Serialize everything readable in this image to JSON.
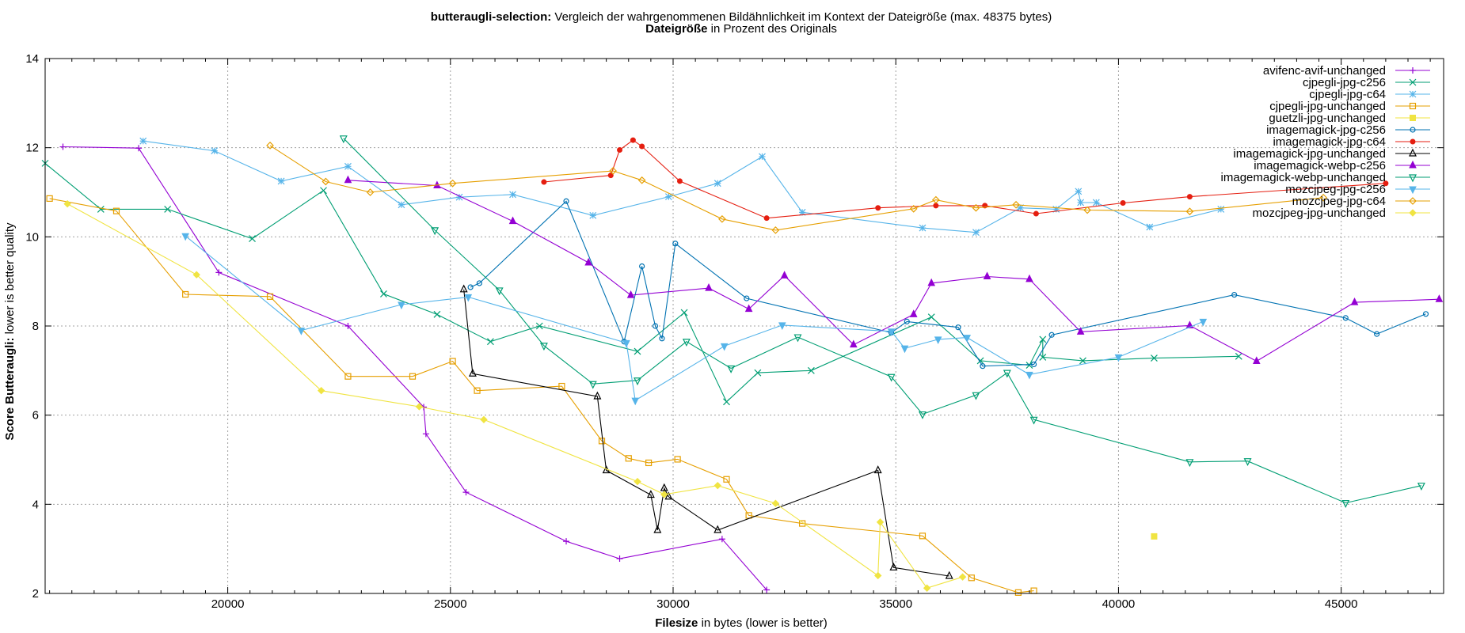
{
  "chart_data": {
    "type": "line",
    "title_bold": "butteraugli-selection:",
    "title_rest": " Vergleich der wahrgenommenen Bildähnlichkeit im Kontext der Dateigröße (max. 48375 bytes)",
    "subtitle_bold": "Dateigröße",
    "subtitle_rest": " in Prozent des Originals",
    "xlabel_bold": "Filesize",
    "xlabel_rest": " in bytes (lower is better)",
    "ylabel_bold": "Score Butteraugli:",
    "ylabel_rest": " lower is better quality",
    "x_range": [
      15900,
      47300
    ],
    "y_range": [
      2,
      14
    ],
    "x_ticks": [
      20000,
      25000,
      30000,
      35000,
      40000,
      45000
    ],
    "x_tick_labels": [
      "20000",
      "25000",
      "30000",
      "35000",
      "40000",
      "45000"
    ],
    "y_ticks": [
      2,
      4,
      6,
      8,
      10,
      12,
      14
    ],
    "y_tick_labels": [
      "2",
      "4",
      "6",
      "8",
      "10",
      "12",
      "14"
    ],
    "grid": true,
    "legend_position": "top-right",
    "series": [
      {
        "name": "avifenc-avif-unchanged",
        "color": "#9400d3",
        "marker": "plus",
        "points": [
          [
            16300,
            12.02
          ],
          [
            18000,
            11.99
          ],
          [
            19800,
            9.2
          ],
          [
            22700,
            8.0
          ],
          [
            24400,
            6.18
          ],
          [
            24450,
            5.58
          ],
          [
            25350,
            4.27
          ],
          [
            27600,
            3.17
          ],
          [
            28800,
            2.78
          ],
          [
            31100,
            3.22
          ],
          [
            32100,
            2.08
          ]
        ]
      },
      {
        "name": "cjpegli-jpg-c256",
        "color": "#009e73",
        "marker": "x",
        "points": [
          [
            15900,
            11.65
          ],
          [
            17150,
            10.62
          ],
          [
            18650,
            10.62
          ],
          [
            20550,
            9.96
          ],
          [
            22150,
            11.04
          ],
          [
            23500,
            8.72
          ],
          [
            24700,
            8.26
          ],
          [
            25900,
            7.65
          ],
          [
            27000,
            8.0
          ],
          [
            29200,
            7.43
          ],
          [
            30250,
            8.3
          ],
          [
            31200,
            6.3
          ],
          [
            31900,
            6.95
          ],
          [
            33100,
            7.0
          ],
          [
            35800,
            8.2
          ],
          [
            36900,
            7.22
          ],
          [
            38000,
            7.12
          ],
          [
            38300,
            7.7
          ],
          [
            38300,
            7.3
          ],
          [
            39200,
            7.22
          ],
          [
            40800,
            7.28
          ],
          [
            42700,
            7.32
          ]
        ]
      },
      {
        "name": "cjpegli-jpg-c64",
        "color": "#56b4e9",
        "marker": "star",
        "points": [
          [
            18100,
            12.15
          ],
          [
            19700,
            11.93
          ],
          [
            21200,
            11.25
          ],
          [
            22700,
            11.58
          ],
          [
            23900,
            10.72
          ],
          [
            25200,
            10.89
          ],
          [
            26400,
            10.95
          ],
          [
            28200,
            10.48
          ],
          [
            29900,
            10.9
          ],
          [
            31000,
            11.2
          ],
          [
            32000,
            11.8
          ],
          [
            32900,
            10.55
          ],
          [
            35600,
            10.2
          ],
          [
            36800,
            10.1
          ],
          [
            37800,
            10.65
          ],
          [
            38600,
            10.62
          ],
          [
            39100,
            11.02
          ],
          [
            39150,
            10.77
          ],
          [
            39500,
            10.77
          ],
          [
            40700,
            10.22
          ],
          [
            42300,
            10.62
          ]
        ]
      },
      {
        "name": "cjpegli-jpg-unchanged",
        "color": "#e69f00",
        "marker": "square",
        "points": [
          [
            16000,
            10.86
          ],
          [
            17500,
            10.58
          ],
          [
            19050,
            8.71
          ],
          [
            20950,
            8.66
          ],
          [
            22700,
            6.87
          ],
          [
            24150,
            6.87
          ],
          [
            25050,
            7.21
          ],
          [
            25600,
            6.55
          ],
          [
            27500,
            6.65
          ],
          [
            28400,
            5.42
          ],
          [
            29000,
            5.03
          ],
          [
            29450,
            4.93
          ],
          [
            30100,
            5.01
          ],
          [
            31200,
            4.56
          ],
          [
            31700,
            3.75
          ],
          [
            32900,
            3.57
          ],
          [
            35600,
            3.29
          ],
          [
            36700,
            2.35
          ],
          [
            37750,
            2.02
          ],
          [
            38100,
            2.06
          ]
        ]
      },
      {
        "name": "guetzli-jpg-unchanged",
        "color": "#f0e442",
        "marker": "fsquare",
        "points": [
          [
            40800,
            3.28
          ]
        ]
      },
      {
        "name": "imagemagick-jpg-c256",
        "color": "#0072b2",
        "marker": "circle",
        "points": [
          [
            25450,
            8.87
          ],
          [
            25650,
            8.96
          ],
          [
            27600,
            10.8
          ],
          [
            28900,
            7.65
          ],
          [
            29300,
            9.34
          ],
          [
            29600,
            8.0
          ],
          [
            29750,
            7.72
          ],
          [
            30050,
            9.85
          ],
          [
            31650,
            8.62
          ],
          [
            34900,
            7.85
          ],
          [
            35250,
            8.1
          ],
          [
            36400,
            7.97
          ],
          [
            36950,
            7.1
          ],
          [
            38100,
            7.14
          ],
          [
            38500,
            7.8
          ],
          [
            42600,
            8.7
          ],
          [
            45100,
            8.18
          ],
          [
            45800,
            7.82
          ],
          [
            46900,
            8.27
          ]
        ]
      },
      {
        "name": "imagemagick-jpg-c64",
        "color": "#e51e10",
        "marker": "fcircle",
        "points": [
          [
            27100,
            11.23
          ],
          [
            28600,
            11.38
          ],
          [
            28800,
            11.95
          ],
          [
            29100,
            12.17
          ],
          [
            29300,
            12.03
          ],
          [
            30150,
            11.25
          ],
          [
            32100,
            10.42
          ],
          [
            34600,
            10.65
          ],
          [
            35900,
            10.7
          ],
          [
            37000,
            10.7
          ],
          [
            38150,
            10.52
          ],
          [
            40100,
            10.76
          ],
          [
            41600,
            10.9
          ],
          [
            46000,
            11.2
          ]
        ]
      },
      {
        "name": "imagemagick-jpg-unchanged",
        "color": "#000000",
        "marker": "triangle",
        "points": [
          [
            25300,
            8.82
          ],
          [
            25500,
            6.93
          ],
          [
            28300,
            6.42
          ],
          [
            28500,
            4.76
          ],
          [
            29500,
            4.21
          ],
          [
            29650,
            3.42
          ],
          [
            29800,
            4.36
          ],
          [
            29900,
            4.17
          ],
          [
            31000,
            3.42
          ],
          [
            34600,
            4.76
          ],
          [
            34950,
            2.58
          ],
          [
            36200,
            2.39
          ]
        ]
      },
      {
        "name": "imagemagick-webp-c256",
        "color": "#9400d3",
        "marker": "ftriangle",
        "points": [
          [
            22700,
            11.27
          ],
          [
            24700,
            11.15
          ],
          [
            26400,
            10.35
          ],
          [
            28100,
            9.42
          ],
          [
            29050,
            8.69
          ],
          [
            30800,
            8.85
          ],
          [
            31700,
            8.38
          ],
          [
            32500,
            9.13
          ],
          [
            34050,
            7.58
          ],
          [
            35400,
            8.26
          ],
          [
            35800,
            8.96
          ],
          [
            37050,
            9.11
          ],
          [
            38000,
            9.05
          ],
          [
            39150,
            7.87
          ],
          [
            41600,
            8.01
          ],
          [
            43100,
            7.21
          ],
          [
            45300,
            8.53
          ],
          [
            47200,
            8.6
          ]
        ]
      },
      {
        "name": "imagemagick-webp-unchanged",
        "color": "#009e73",
        "marker": "itriangle",
        "points": [
          [
            22600,
            12.21
          ],
          [
            24650,
            10.15
          ],
          [
            26100,
            8.8
          ],
          [
            27100,
            7.56
          ],
          [
            28200,
            6.7
          ],
          [
            29200,
            6.78
          ],
          [
            30300,
            7.65
          ],
          [
            31300,
            7.05
          ],
          [
            32800,
            7.75
          ],
          [
            34900,
            6.86
          ],
          [
            35600,
            6.02
          ],
          [
            36800,
            6.45
          ],
          [
            37500,
            6.95
          ],
          [
            38100,
            5.9
          ],
          [
            41600,
            4.95
          ],
          [
            42900,
            4.97
          ],
          [
            45100,
            4.03
          ],
          [
            46800,
            4.42
          ]
        ]
      },
      {
        "name": "mozcjpeg-jpg-c256",
        "color": "#56b4e9",
        "marker": "fitriangle",
        "points": [
          [
            19050,
            10.02
          ],
          [
            21650,
            7.9
          ],
          [
            23900,
            8.48
          ],
          [
            25400,
            8.65
          ],
          [
            28950,
            7.62
          ],
          [
            29150,
            6.33
          ],
          [
            31150,
            7.55
          ],
          [
            32450,
            8.02
          ],
          [
            34900,
            7.88
          ],
          [
            35200,
            7.5
          ],
          [
            35950,
            7.7
          ],
          [
            36600,
            7.74
          ],
          [
            38000,
            6.91
          ],
          [
            40000,
            7.3
          ],
          [
            41900,
            8.1
          ]
        ]
      },
      {
        "name": "mozcjpeg-jpg-c64",
        "color": "#e69f00",
        "marker": "diamond",
        "points": [
          [
            20950,
            12.05
          ],
          [
            22200,
            11.24
          ],
          [
            23200,
            11.0
          ],
          [
            25050,
            11.2
          ],
          [
            28650,
            11.48
          ],
          [
            29300,
            11.27
          ],
          [
            31100,
            10.4
          ],
          [
            32300,
            10.15
          ],
          [
            35400,
            10.63
          ],
          [
            35900,
            10.83
          ],
          [
            36800,
            10.65
          ],
          [
            37700,
            10.72
          ],
          [
            39300,
            10.6
          ],
          [
            41600,
            10.57
          ],
          [
            44600,
            10.88
          ]
        ]
      },
      {
        "name": "mozcjpeg-jpg-unchanged",
        "color": "#f0e442",
        "marker": "fdiamond",
        "points": [
          [
            16400,
            10.74
          ],
          [
            19300,
            9.15
          ],
          [
            22100,
            6.55
          ],
          [
            24300,
            6.19
          ],
          [
            25750,
            5.9
          ],
          [
            29200,
            4.51
          ],
          [
            29800,
            4.22
          ],
          [
            31000,
            4.42
          ],
          [
            32300,
            4.02
          ],
          [
            34600,
            2.4
          ],
          [
            34650,
            3.6
          ],
          [
            35700,
            2.12
          ],
          [
            36500,
            2.37
          ]
        ]
      }
    ]
  }
}
